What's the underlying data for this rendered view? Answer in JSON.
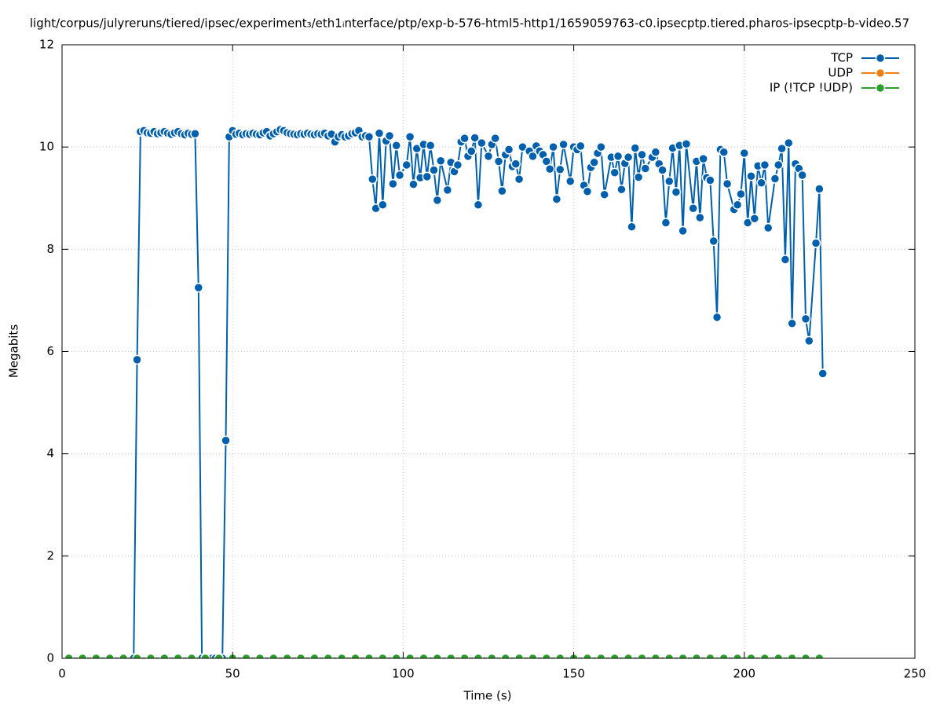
{
  "chart_data": {
    "type": "line",
    "title": "light/corpus/julyreruns/tiered/ipsec/experiment₃/eth1ᵢnterface/ptp/exp-b-576-html5-http1/1659059763-c0.ipsecptp.tiered.pharos-ipsecptp-b-video.57",
    "xlabel": "Time (s)",
    "ylabel": "Megabits",
    "xlim": [
      0,
      250
    ],
    "ylim": [
      0,
      12
    ],
    "xticks": [
      0,
      50,
      100,
      150,
      200,
      250
    ],
    "yticks": [
      0,
      2,
      4,
      6,
      8,
      10,
      12
    ],
    "grid": true,
    "legend": "upper right",
    "series": [
      {
        "name": "TCP",
        "color": "#0060ad",
        "x": [
          21,
          22,
          23,
          24,
          25,
          26,
          27,
          28,
          29,
          30,
          31,
          32,
          33,
          34,
          35,
          36,
          37,
          38,
          39,
          40,
          41,
          42,
          43,
          44,
          45,
          46,
          47,
          48,
          49,
          50,
          51,
          52,
          53,
          54,
          55,
          56,
          57,
          58,
          59,
          60,
          61,
          62,
          63,
          64,
          65,
          66,
          67,
          68,
          69,
          70,
          71,
          72,
          73,
          74,
          75,
          76,
          77,
          78,
          79,
          80,
          81,
          82,
          83,
          84,
          85,
          86,
          87,
          88,
          89,
          90,
          91,
          92,
          93,
          94,
          95,
          96,
          97,
          98,
          99,
          101,
          102,
          103,
          104,
          105,
          106,
          107,
          108,
          109,
          110,
          111,
          113,
          114,
          115,
          116,
          117,
          118,
          119,
          120,
          121,
          122,
          123,
          125,
          126,
          127,
          128,
          129,
          130,
          131,
          132,
          133,
          134,
          135,
          137,
          138,
          139,
          140,
          141,
          142,
          143,
          144,
          145,
          146,
          147,
          149,
          150,
          151,
          152,
          153,
          154,
          155,
          156,
          157,
          158,
          159,
          161,
          162,
          163,
          164,
          165,
          166,
          167,
          168,
          169,
          170,
          171,
          173,
          174,
          175,
          176,
          177,
          178,
          179,
          180,
          181,
          182,
          183,
          185,
          186,
          187,
          188,
          189,
          190,
          191,
          192,
          193,
          194,
          195,
          197,
          198,
          199,
          200,
          201,
          202,
          203,
          204,
          205,
          206,
          207,
          209,
          210,
          211,
          212,
          213,
          214,
          215,
          216,
          217,
          218,
          219,
          221,
          222,
          223
        ],
        "values": [
          0,
          5.84,
          10.3,
          10.32,
          10.28,
          10.27,
          10.3,
          10.26,
          10.28,
          10.3,
          10.27,
          10.25,
          10.28,
          10.3,
          10.26,
          10.24,
          10.27,
          10.25,
          10.26,
          7.25,
          0,
          0,
          0,
          0,
          0,
          0,
          0,
          4.26,
          10.2,
          10.32,
          10.25,
          10.27,
          10.24,
          10.26,
          10.25,
          10.27,
          10.25,
          10.24,
          10.28,
          10.3,
          10.22,
          10.26,
          10.3,
          10.34,
          10.32,
          10.28,
          10.26,
          10.25,
          10.24,
          10.26,
          10.25,
          10.27,
          10.25,
          10.24,
          10.26,
          10.25,
          10.27,
          10.22,
          10.25,
          10.1,
          10.2,
          10.24,
          10.2,
          10.22,
          10.26,
          10.28,
          10.32,
          10.2,
          10.22,
          10.2,
          9.37,
          8.8,
          10.27,
          8.87,
          10.12,
          10.22,
          9.28,
          10.03,
          9.45,
          9.65,
          10.2,
          9.27,
          9.97,
          9.4,
          10.05,
          9.42,
          10.03,
          9.55,
          8.96,
          9.73,
          9.16,
          9.7,
          9.52,
          9.65,
          10.1,
          10.17,
          9.82,
          9.92,
          10.18,
          8.87,
          10.08,
          9.82,
          10.05,
          10.17,
          9.72,
          9.14,
          9.85,
          9.95,
          9.62,
          9.67,
          9.37,
          10.0,
          9.92,
          9.82,
          10.02,
          9.92,
          9.85,
          9.72,
          9.57,
          10.0,
          8.98,
          9.56,
          10.05,
          9.33,
          10.0,
          9.95,
          10.02,
          9.25,
          9.13,
          9.6,
          9.7,
          9.88,
          10.0,
          9.07,
          9.8,
          9.5,
          9.82,
          9.17,
          9.68,
          9.8,
          8.44,
          9.98,
          9.41,
          9.85,
          9.58,
          9.8,
          9.9,
          9.67,
          9.55,
          8.52,
          9.33,
          9.98,
          9.12,
          10.03,
          8.36,
          10.06,
          8.8,
          9.72,
          8.62,
          9.77,
          9.4,
          9.35,
          8.16,
          6.67,
          9.95,
          9.9,
          9.28,
          8.78,
          8.87,
          9.08,
          9.88,
          8.52,
          9.43,
          8.6,
          9.63,
          9.3,
          9.65,
          8.42,
          9.38,
          9.65,
          9.97,
          7.8,
          10.08,
          6.55,
          9.67,
          9.58,
          9.45,
          6.64,
          6.21,
          8.12,
          9.18,
          5.57
        ]
      },
      {
        "name": "UDP",
        "color": "#f07f12",
        "x": [],
        "values": []
      },
      {
        "name": "IP (!TCP  !UDP)",
        "color": "#2ca02c",
        "x": [
          2,
          6,
          10,
          14,
          18,
          22,
          26,
          30,
          34,
          38,
          42,
          46,
          50,
          54,
          58,
          62,
          66,
          70,
          74,
          78,
          82,
          86,
          90,
          94,
          98,
          102,
          106,
          110,
          114,
          118,
          122,
          126,
          130,
          134,
          138,
          142,
          146,
          150,
          154,
          158,
          162,
          166,
          170,
          174,
          178,
          182,
          186,
          190,
          194,
          198,
          202,
          206,
          210,
          214,
          218,
          222
        ],
        "values": [
          0,
          0,
          0,
          0,
          0,
          0,
          0,
          0,
          0,
          0,
          0,
          0,
          0,
          0,
          0,
          0,
          0,
          0,
          0,
          0,
          0,
          0,
          0,
          0,
          0,
          0,
          0,
          0,
          0,
          0,
          0,
          0,
          0,
          0,
          0,
          0,
          0,
          0,
          0,
          0,
          0,
          0,
          0,
          0,
          0,
          0,
          0,
          0,
          0,
          0,
          0,
          0,
          0,
          0,
          0,
          0
        ]
      }
    ]
  }
}
